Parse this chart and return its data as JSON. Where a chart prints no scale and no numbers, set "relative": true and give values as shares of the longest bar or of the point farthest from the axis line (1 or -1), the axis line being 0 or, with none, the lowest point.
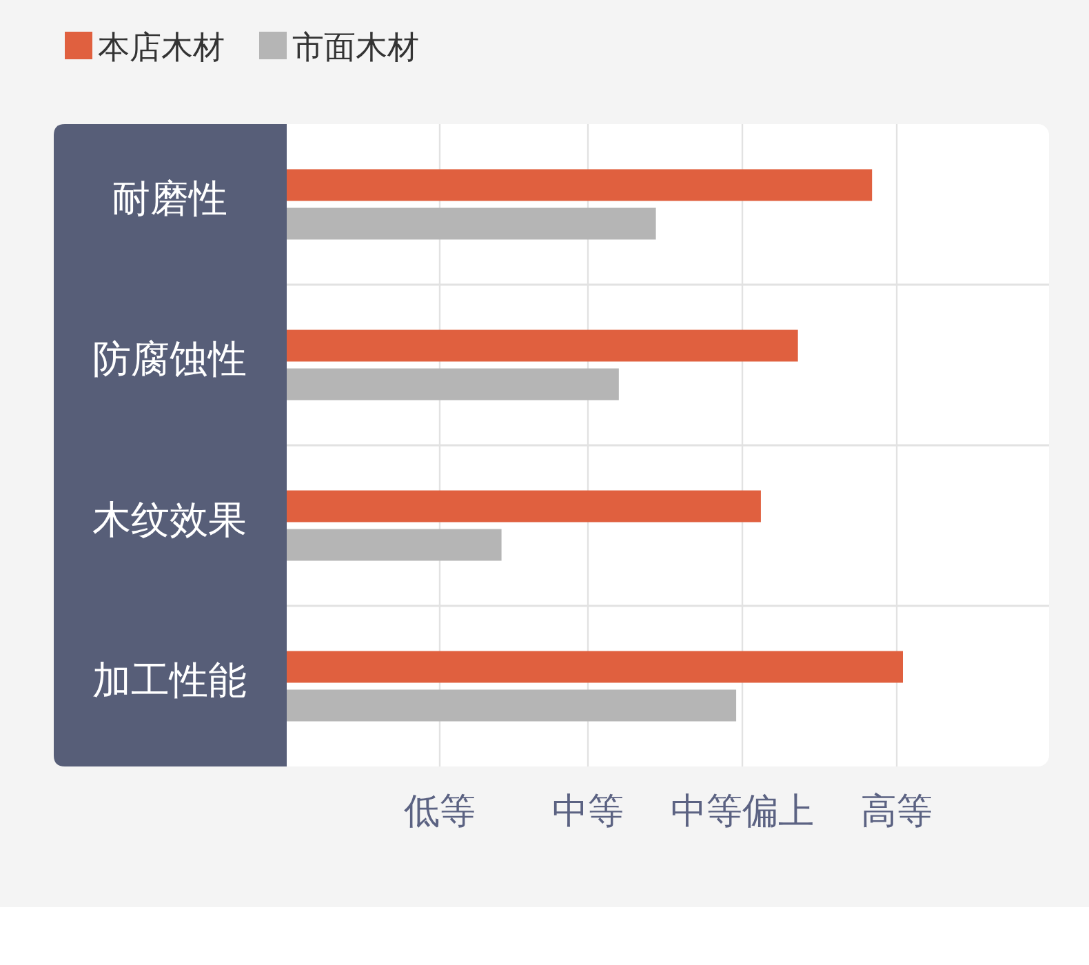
{
  "chart_data": {
    "type": "bar",
    "orientation": "horizontal",
    "relative": true,
    "categories": [
      "耐磨性",
      "防腐蚀性",
      "木纹效果",
      "加工性能"
    ],
    "series": [
      {
        "name": "本店木材",
        "color": "#e0603f",
        "values": [
          0.95,
          0.83,
          0.77,
          1
        ]
      },
      {
        "name": "市面木材",
        "color": "#b5b5b5",
        "values": [
          0.6,
          0.54,
          0.35,
          0.73
        ]
      }
    ],
    "ref_lines": [
      {
        "axis": "x",
        "value": 0.25,
        "label": "低等",
        "color": "#e2e2e2"
      },
      {
        "axis": "x",
        "value": 0.49,
        "label": "中等",
        "color": "#e2e2e2"
      },
      {
        "axis": "x",
        "value": 0.74,
        "label": "中等偏上",
        "color": "#e2e2e2"
      },
      {
        "axis": "x",
        "value": 0.99,
        "label": "高等",
        "color": "#e2e2e2"
      }
    ],
    "grid": "y",
    "legend": "top left"
  }
}
